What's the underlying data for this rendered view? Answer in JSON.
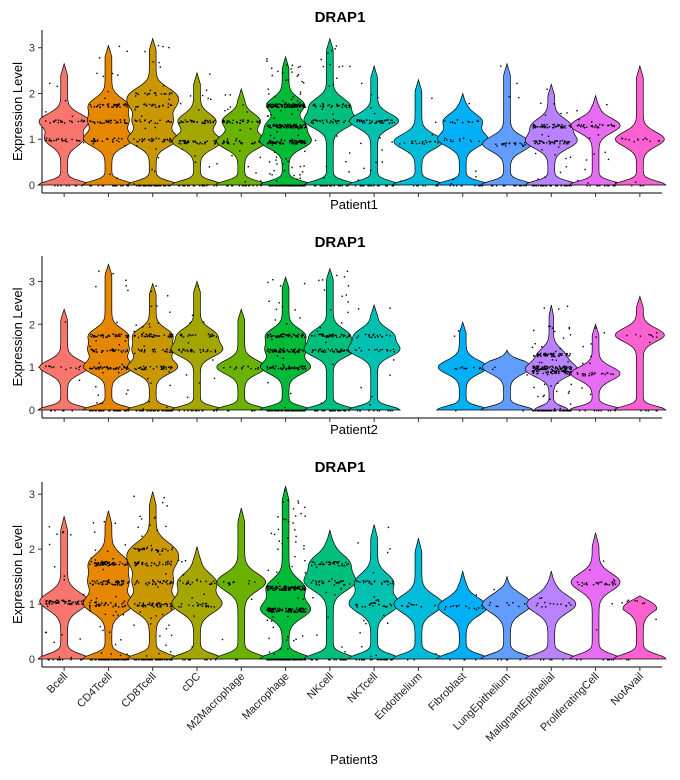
{
  "chart_data": [
    {
      "type": "violin",
      "title": "DRAP1",
      "xlabel": "Patient1",
      "ylabel": "Expression Level",
      "ylim": [
        0,
        3.3
      ],
      "yticks": [
        0,
        1,
        2,
        3
      ],
      "categories": [
        "Bcell",
        "CD4Tcell",
        "CD8Tcell",
        "cDC",
        "M2Macrophage",
        "Macrophage",
        "NKcell",
        "NKTcell",
        "Endothelium",
        "Fibroblast",
        "LungEpithelium",
        "MalignantEpithelial",
        "ProliferatingCell",
        "NotAvail"
      ],
      "series": [
        {
          "name": "Bcell",
          "max": 2.65,
          "count": 60,
          "modes": [
            1.4,
            1.0
          ]
        },
        {
          "name": "CD4Tcell",
          "max": 3.05,
          "count": 120,
          "modes": [
            1.0,
            1.4,
            1.75
          ]
        },
        {
          "name": "CD8Tcell",
          "max": 3.2,
          "count": 150,
          "modes": [
            1.0,
            1.4,
            1.75,
            2.0
          ]
        },
        {
          "name": "cDC",
          "max": 2.45,
          "count": 110,
          "modes": [
            0.95,
            1.4
          ]
        },
        {
          "name": "M2Macrophage",
          "max": 2.1,
          "count": 90,
          "modes": [
            0.95,
            1.4
          ]
        },
        {
          "name": "Macrophage",
          "max": 2.8,
          "count": 420,
          "modes": [
            0.95,
            1.3,
            1.75
          ]
        },
        {
          "name": "NKcell",
          "max": 3.2,
          "count": 110,
          "modes": [
            1.4,
            1.75
          ]
        },
        {
          "name": "NKTcell",
          "max": 2.6,
          "count": 80,
          "modes": [
            1.4
          ]
        },
        {
          "name": "Endothelium",
          "max": 2.3,
          "count": 30,
          "modes": [
            0.95
          ]
        },
        {
          "name": "Fibroblast",
          "max": 2.0,
          "count": 40,
          "modes": [
            1.0,
            1.4
          ]
        },
        {
          "name": "LungEpithelium",
          "max": 2.65,
          "count": 40,
          "modes": [
            0.9
          ]
        },
        {
          "name": "MalignantEpithelial",
          "max": 2.2,
          "count": 140,
          "modes": [
            0.95,
            1.3
          ]
        },
        {
          "name": "ProliferatingCell",
          "max": 1.95,
          "count": 60,
          "modes": [
            1.3
          ]
        },
        {
          "name": "NotAvail",
          "max": 2.6,
          "count": 18,
          "modes": [
            1.0
          ]
        }
      ]
    },
    {
      "type": "violin",
      "title": "DRAP1",
      "xlabel": "Patient2",
      "ylabel": "Expression Level",
      "ylim": [
        0,
        3.5
      ],
      "yticks": [
        0,
        1,
        2,
        3
      ],
      "categories": [
        "Bcell",
        "CD4Tcell",
        "CD8Tcell",
        "cDC",
        "M2Macrophage",
        "Macrophage",
        "NKcell",
        "NKTcell",
        "Endothelium",
        "Fibroblast",
        "LungEpithelium",
        "MalignantEpithelial",
        "ProliferatingCell",
        "NotAvail"
      ],
      "series": [
        {
          "name": "Bcell",
          "max": 2.35,
          "count": 20,
          "modes": [
            1.0
          ]
        },
        {
          "name": "CD4Tcell",
          "max": 3.4,
          "count": 180,
          "modes": [
            1.0,
            1.4,
            1.75
          ]
        },
        {
          "name": "CD8Tcell",
          "max": 2.95,
          "count": 160,
          "modes": [
            1.0,
            1.4,
            1.75
          ]
        },
        {
          "name": "cDC",
          "max": 3.0,
          "count": 70,
          "modes": [
            1.4,
            1.75
          ]
        },
        {
          "name": "M2Macrophage",
          "max": 2.35,
          "count": 20,
          "modes": [
            1.0
          ]
        },
        {
          "name": "Macrophage",
          "max": 3.1,
          "count": 260,
          "modes": [
            1.0,
            1.4,
            1.75
          ]
        },
        {
          "name": "NKcell",
          "max": 3.3,
          "count": 130,
          "modes": [
            1.4,
            1.75
          ]
        },
        {
          "name": "NKTcell",
          "max": 2.45,
          "count": 50,
          "modes": [
            1.4,
            1.75
          ]
        },
        {
          "name": "Endothelium",
          "max": 0,
          "count": 0,
          "modes": []
        },
        {
          "name": "Fibroblast",
          "max": 2.05,
          "count": 15,
          "modes": [
            1.0
          ]
        },
        {
          "name": "LungEpithelium",
          "max": 1.4,
          "count": 4,
          "modes": [
            1.0
          ]
        },
        {
          "name": "MalignantEpithelial",
          "max": 2.45,
          "count": 320,
          "modes": [
            0.9,
            1.3,
            1.0
          ]
        },
        {
          "name": "ProliferatingCell",
          "max": 2.0,
          "count": 40,
          "modes": [
            0.85
          ]
        },
        {
          "name": "NotAvail",
          "max": 2.65,
          "count": 15,
          "modes": [
            1.75
          ]
        }
      ]
    },
    {
      "type": "violin",
      "title": "DRAP1",
      "xlabel": "Patient3",
      "ylabel": "Expression Level",
      "ylim": [
        0,
        3.15
      ],
      "yticks": [
        0,
        1,
        2,
        3
      ],
      "categories": [
        "Bcell",
        "CD4Tcell",
        "CD8Tcell",
        "cDC",
        "M2Macrophage",
        "Macrophage",
        "NKcell",
        "NKTcell",
        "Endothelium",
        "Fibroblast",
        "LungEpithelium",
        "MalignantEpithelial",
        "ProliferatingCell",
        "NotAvail"
      ],
      "series": [
        {
          "name": "Bcell",
          "max": 2.6,
          "count": 90,
          "modes": [
            1.05
          ]
        },
        {
          "name": "CD4Tcell",
          "max": 2.7,
          "count": 240,
          "modes": [
            1.0,
            1.4,
            1.75
          ]
        },
        {
          "name": "CD8Tcell",
          "max": 3.05,
          "count": 230,
          "modes": [
            1.0,
            1.4,
            1.75,
            2.0
          ]
        },
        {
          "name": "cDC",
          "max": 2.05,
          "count": 60,
          "modes": [
            1.0,
            1.4
          ]
        },
        {
          "name": "M2Macrophage",
          "max": 2.75,
          "count": 15,
          "modes": [
            1.4
          ]
        },
        {
          "name": "Macrophage",
          "max": 3.15,
          "count": 320,
          "modes": [
            0.9,
            1.3
          ]
        },
        {
          "name": "NKcell",
          "max": 2.35,
          "count": 90,
          "modes": [
            1.4,
            1.75
          ]
        },
        {
          "name": "NKTcell",
          "max": 2.45,
          "count": 90,
          "modes": [
            1.0,
            1.4
          ]
        },
        {
          "name": "Endothelium",
          "max": 2.2,
          "count": 15,
          "modes": [
            1.0
          ]
        },
        {
          "name": "Fibroblast",
          "max": 1.6,
          "count": 20,
          "modes": [
            0.95
          ]
        },
        {
          "name": "LungEpithelium",
          "max": 1.5,
          "count": 15,
          "modes": [
            1.0
          ]
        },
        {
          "name": "MalignantEpithelial",
          "max": 1.6,
          "count": 20,
          "modes": [
            1.0
          ]
        },
        {
          "name": "ProliferatingCell",
          "max": 2.3,
          "count": 40,
          "modes": [
            1.4
          ]
        },
        {
          "name": "NotAvail",
          "max": 1.15,
          "count": 10,
          "modes": [
            1.05
          ]
        }
      ]
    }
  ],
  "colors": [
    "#F8766D",
    "#E58700",
    "#C99800",
    "#A3A500",
    "#6BB100",
    "#00BA38",
    "#00BF7D",
    "#00C0AF",
    "#00BCD8",
    "#00B0F6",
    "#619CFF",
    "#B983FF",
    "#E76BF3",
    "#FD61D1"
  ]
}
